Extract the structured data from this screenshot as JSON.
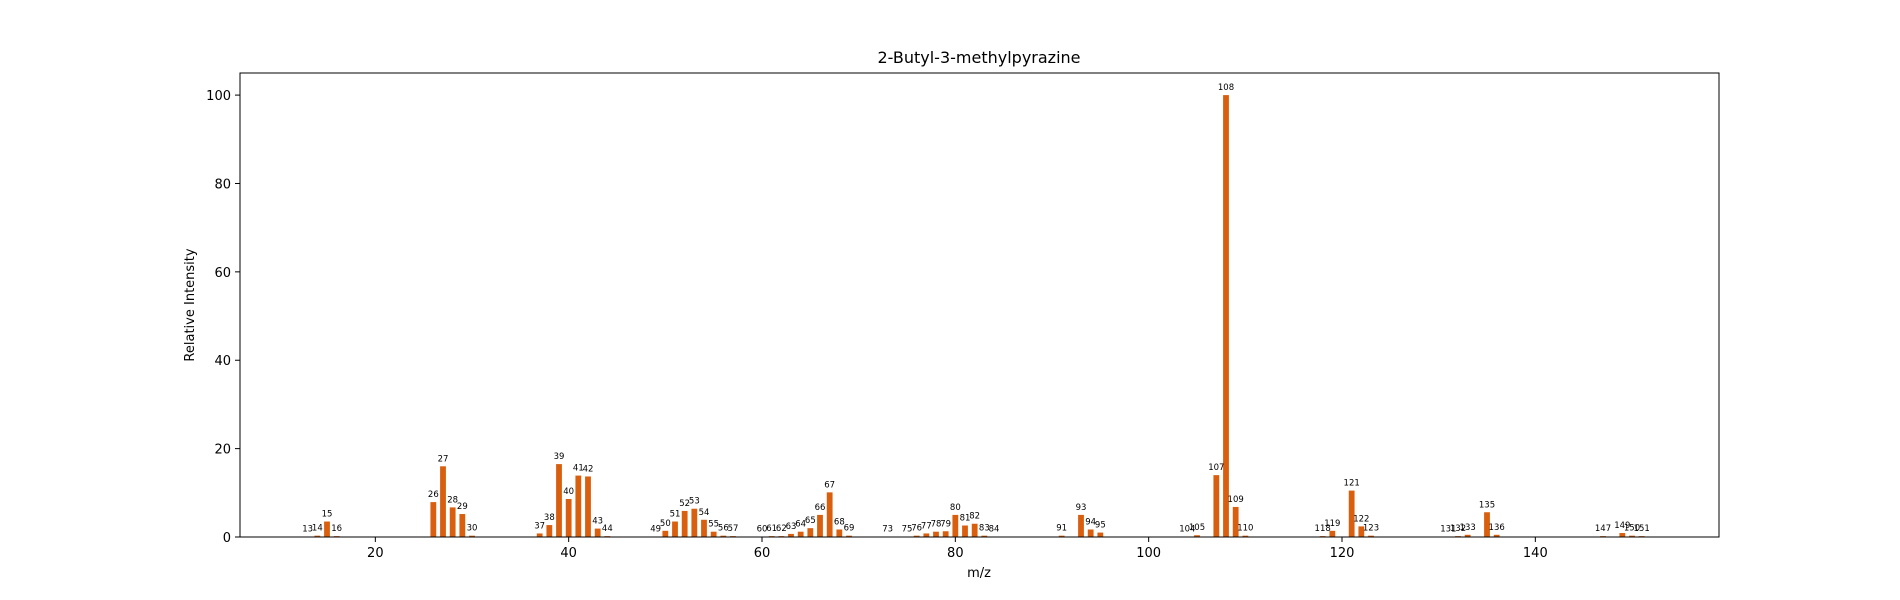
{
  "chart_data": {
    "type": "bar",
    "title": "2-Butyl-3-methylpyrazine",
    "xlabel": "m/z",
    "ylabel": "Relative Intensity",
    "xlim": [
      6,
      159
    ],
    "ylim": [
      0,
      105
    ],
    "xticks": [
      20,
      40,
      60,
      80,
      100,
      120,
      140
    ],
    "yticks": [
      0,
      20,
      40,
      60,
      80,
      100
    ],
    "bar_color": "#d95f0e",
    "grid": false,
    "labels_on_bars": true,
    "x": [
      13,
      14,
      15,
      16,
      26,
      27,
      28,
      29,
      30,
      37,
      38,
      39,
      40,
      41,
      42,
      43,
      44,
      49,
      50,
      51,
      52,
      53,
      54,
      55,
      56,
      57,
      60,
      61,
      62,
      63,
      64,
      65,
      66,
      67,
      68,
      69,
      73,
      75,
      76,
      77,
      78,
      79,
      80,
      81,
      82,
      83,
      84,
      91,
      93,
      94,
      95,
      104,
      105,
      107,
      108,
      109,
      110,
      118,
      119,
      121,
      122,
      123,
      131,
      132,
      133,
      135,
      136,
      147,
      149,
      150,
      151
    ],
    "values": [
      0.1,
      0.3,
      3.5,
      0.2,
      7.9,
      16.0,
      6.7,
      5.2,
      0.3,
      0.8,
      2.7,
      16.5,
      8.6,
      13.9,
      13.7,
      1.9,
      0.2,
      0.1,
      1.4,
      3.5,
      5.9,
      6.4,
      3.9,
      1.2,
      0.3,
      0.2,
      0.1,
      0.2,
      0.2,
      0.7,
      1.2,
      2.0,
      5.0,
      10.1,
      1.7,
      0.3,
      0.1,
      0.1,
      0.3,
      0.8,
      1.2,
      1.3,
      5.0,
      2.6,
      3.0,
      0.3,
      0.1,
      0.3,
      5.0,
      1.7,
      1.0,
      0.1,
      0.4,
      14.0,
      100.0,
      6.8,
      0.3,
      0.2,
      1.4,
      10.5,
      2.4,
      0.3,
      0.1,
      0.2,
      0.5,
      5.6,
      0.5,
      0.2,
      0.9,
      0.3,
      0.2
    ]
  }
}
